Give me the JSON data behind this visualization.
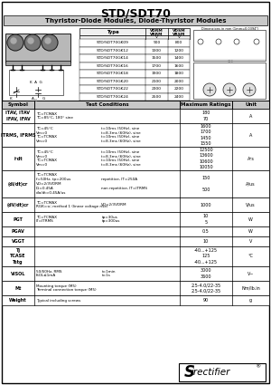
{
  "title": "STD/SDT70",
  "subtitle": "Thyristor-Diode Modules, Diode-Thyristor Modules",
  "type_rows": [
    [
      "STD/SDT70GK09",
      "900",
      "800"
    ],
    [
      "STD/SDT70GK12",
      "1300",
      "1200"
    ],
    [
      "STD/SDT70GK14",
      "1500",
      "1400"
    ],
    [
      "STD/SDT70GK16",
      "1700",
      "1600"
    ],
    [
      "STD/SDT70GK18",
      "1900",
      "1800"
    ],
    [
      "STD/SDT70GK20",
      "2100",
      "2000"
    ],
    [
      "STD/SDT70GK22",
      "2300",
      "2200"
    ],
    [
      "STD/SDT70GK24",
      "2500",
      "2400"
    ]
  ],
  "main_rows": [
    {
      "sym": "ITAV, ITAV\nIFAV, IFAV",
      "cond_l": "TC=TCMAX\nTC=85°C, 180° sine",
      "cond_r": "",
      "rating": "180\n70",
      "unit": "A",
      "rh": 16
    },
    {
      "sym": "ITRMS, IFRMS",
      "cond_l": "TC=45°C\nVm=0\nTC=TCMAX\nVm=0",
      "cond_r": "t=10ms (50Hz), sine\nt=8.3ms (60Hz), sine\nt=10ms (50Hz), sine\nt=8.3ms (60Hz), sine",
      "rating": "1600\n1700\n1450\n1550",
      "unit": "A",
      "rh": 26
    },
    {
      "sym": "i²dt",
      "cond_l": "TC=45°C\nVm=0\nTC=TCMAX\nVm=0",
      "cond_r": "t=10ms (50Hz), sine\nt=8.3ms (60Hz), sine\nt=10ms (50Hz), sine\nt=8.3ms (60Hz), sine",
      "rating": "12500\n13600\n10600\n10050",
      "unit": "A²s",
      "rh": 26
    },
    {
      "sym": "(di/dt)cr",
      "cond_l": "TC=TCMAX\nf=50Hz, tp=200us\nVD=2/3VDRM\nIG=0.45A\ndio/dt=0.45A/us",
      "cond_r": "repetitive, IT=250A\n\nnon repetitive, IT=ITRMS",
      "rating": "150\n\n500",
      "unit": "A/us",
      "rh": 30
    },
    {
      "sym": "(dV/dt)cr",
      "cond_l": "TC=TCMAX\nRGK=∞; method 1 (linear voltage rise)",
      "cond_r": "VD=2/3VDRM",
      "rating": "1000",
      "unit": "V/us",
      "rh": 16
    },
    {
      "sym": "PGT",
      "cond_l": "TC=TCMAX\nIT=ITRMS",
      "cond_r": "tp=30us\ntp=300us",
      "rating": "10\n5",
      "unit": "W",
      "rh": 16
    },
    {
      "sym": "PGAV",
      "cond_l": "",
      "cond_r": "",
      "rating": "0.5",
      "unit": "W",
      "rh": 11
    },
    {
      "sym": "VGGT",
      "cond_l": "",
      "cond_r": "",
      "rating": "10",
      "unit": "V",
      "rh": 11
    },
    {
      "sym": "Tj\nTCASE\nTstg",
      "cond_l": "",
      "cond_r": "",
      "rating": "-40...+125\n125\n-40...+125",
      "unit": "°C",
      "rh": 22
    },
    {
      "sym": "VISOL",
      "cond_l": "50/60Hz, RMS\nISOL≤1mA",
      "cond_r": "t=1min\nt=1s",
      "rating": "3000\n3600",
      "unit": "V~",
      "rh": 16
    },
    {
      "sym": "Mt",
      "cond_l": "Mounting torque (M5)\nTerminal connection torque (M5)",
      "cond_r": "",
      "rating": "2.5-4.0/22-35\n2.5-4.0/22-35",
      "unit": "Nm/lb.in",
      "rh": 16
    },
    {
      "sym": "Weight",
      "cond_l": "Typical including screws",
      "cond_r": "",
      "rating": "90",
      "unit": "g",
      "rh": 11
    }
  ]
}
